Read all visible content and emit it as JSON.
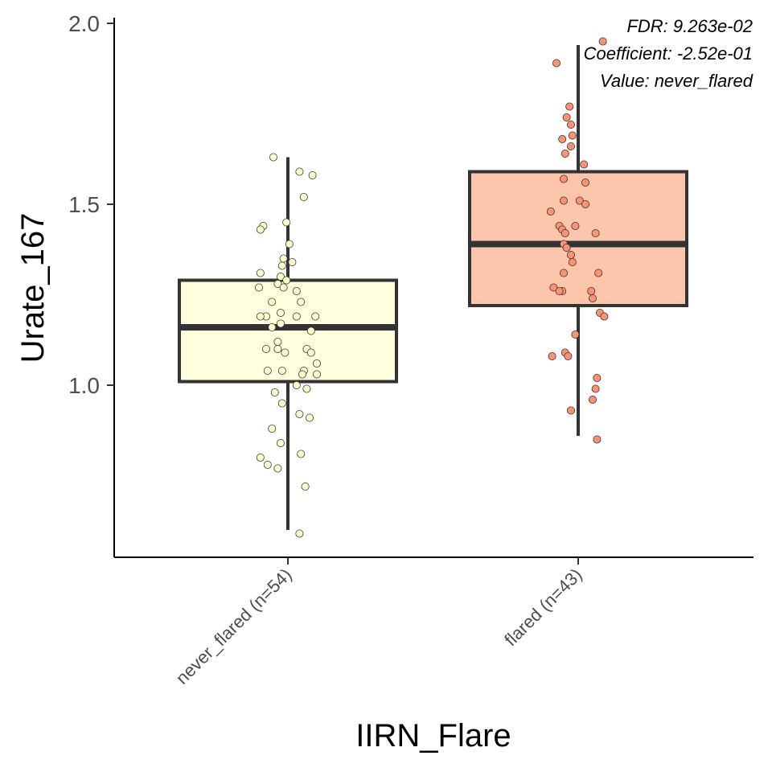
{
  "chart_data": {
    "type": "box",
    "xlabel": "IIRN_Flare",
    "ylabel": "Urate_167",
    "ylim": [
      0.53,
      2.02
    ],
    "yticks": [
      "1.0",
      "1.5",
      "2.0"
    ],
    "ytick_values": [
      1.0,
      1.5,
      2.0
    ],
    "annotations": [
      "FDR: 9.263e-02",
      "Coefficient: -2.52e-01",
      "Value: never_flared"
    ],
    "groups": [
      {
        "label": "never_flared (n=54)",
        "fill": "#FFFFDD",
        "point_fill": "#FFFFCC",
        "q1": 1.01,
        "median": 1.16,
        "q3": 1.29,
        "whisker_low": 0.6,
        "whisker_high": 1.63,
        "points": [
          [
            -0.1,
            1.63
          ],
          [
            0.08,
            1.59
          ],
          [
            0.17,
            1.58
          ],
          [
            0.11,
            1.52
          ],
          [
            -0.17,
            1.44
          ],
          [
            -0.19,
            1.43
          ],
          [
            -0.01,
            1.45
          ],
          [
            0.01,
            1.39
          ],
          [
            -0.03,
            1.35
          ],
          [
            -0.04,
            1.33
          ],
          [
            0.03,
            1.34
          ],
          [
            -0.19,
            1.31
          ],
          [
            -0.05,
            1.3
          ],
          [
            -0.01,
            1.29
          ],
          [
            -0.07,
            1.28
          ],
          [
            -0.03,
            1.27
          ],
          [
            -0.2,
            1.27
          ],
          [
            0.06,
            1.26
          ],
          [
            0.09,
            1.23
          ],
          [
            -0.11,
            1.23
          ],
          [
            -0.05,
            1.2
          ],
          [
            -0.15,
            1.19
          ],
          [
            -0.19,
            1.19
          ],
          [
            0.06,
            1.19
          ],
          [
            0.19,
            1.19
          ],
          [
            -0.05,
            1.17
          ],
          [
            -0.11,
            1.16
          ],
          [
            0.16,
            1.15
          ],
          [
            -0.07,
            1.12
          ],
          [
            -0.15,
            1.1
          ],
          [
            -0.07,
            1.1
          ],
          [
            0.13,
            1.1
          ],
          [
            -0.02,
            1.09
          ],
          [
            0.16,
            1.09
          ],
          [
            0.2,
            1.06
          ],
          [
            0.11,
            1.04
          ],
          [
            -0.14,
            1.04
          ],
          [
            -0.04,
            1.04
          ],
          [
            0.1,
            1.03
          ],
          [
            0.2,
            1.03
          ],
          [
            0.06,
            1.0
          ],
          [
            0.13,
            0.99
          ],
          [
            -0.09,
            0.98
          ],
          [
            -0.04,
            0.95
          ],
          [
            0.08,
            0.92
          ],
          [
            0.15,
            0.91
          ],
          [
            -0.11,
            0.88
          ],
          [
            -0.05,
            0.84
          ],
          [
            0.09,
            0.81
          ],
          [
            -0.19,
            0.8
          ],
          [
            -0.14,
            0.78
          ],
          [
            -0.07,
            0.77
          ],
          [
            0.12,
            0.72
          ],
          [
            0.08,
            0.59
          ]
        ]
      },
      {
        "label": "flared (n=43)",
        "fill": "#FCC5AC",
        "point_fill": "#FC9272",
        "q1": 1.22,
        "median": 1.39,
        "q3": 1.59,
        "whisker_low": 0.86,
        "whisker_high": 1.94,
        "points": [
          [
            0.17,
            1.95
          ],
          [
            -0.15,
            1.89
          ],
          [
            -0.06,
            1.77
          ],
          [
            -0.08,
            1.74
          ],
          [
            -0.05,
            1.72
          ],
          [
            -0.04,
            1.69
          ],
          [
            -0.11,
            1.68
          ],
          [
            -0.05,
            1.66
          ],
          [
            -0.09,
            1.64
          ],
          [
            0.04,
            1.61
          ],
          [
            -0.1,
            1.57
          ],
          [
            0.05,
            1.56
          ],
          [
            0.01,
            1.51
          ],
          [
            -0.1,
            1.51
          ],
          [
            0.05,
            1.5
          ],
          [
            -0.19,
            1.48
          ],
          [
            -0.13,
            1.44
          ],
          [
            -0.02,
            1.44
          ],
          [
            -0.11,
            1.43
          ],
          [
            0.12,
            1.42
          ],
          [
            -0.09,
            1.42
          ],
          [
            -0.1,
            1.39
          ],
          [
            -0.08,
            1.38
          ],
          [
            -0.05,
            1.36
          ],
          [
            -0.04,
            1.34
          ],
          [
            0.14,
            1.31
          ],
          [
            -0.1,
            1.31
          ],
          [
            -0.17,
            1.27
          ],
          [
            -0.11,
            1.26
          ],
          [
            -0.13,
            1.26
          ],
          [
            0.09,
            1.26
          ],
          [
            0.1,
            1.24
          ],
          [
            0.15,
            1.2
          ],
          [
            0.18,
            1.19
          ],
          [
            -0.02,
            1.14
          ],
          [
            -0.09,
            1.09
          ],
          [
            -0.07,
            1.08
          ],
          [
            -0.18,
            1.08
          ],
          [
            0.13,
            1.02
          ],
          [
            0.12,
            0.99
          ],
          [
            0.1,
            0.96
          ],
          [
            -0.05,
            0.93
          ],
          [
            0.13,
            0.85
          ]
        ]
      }
    ]
  }
}
